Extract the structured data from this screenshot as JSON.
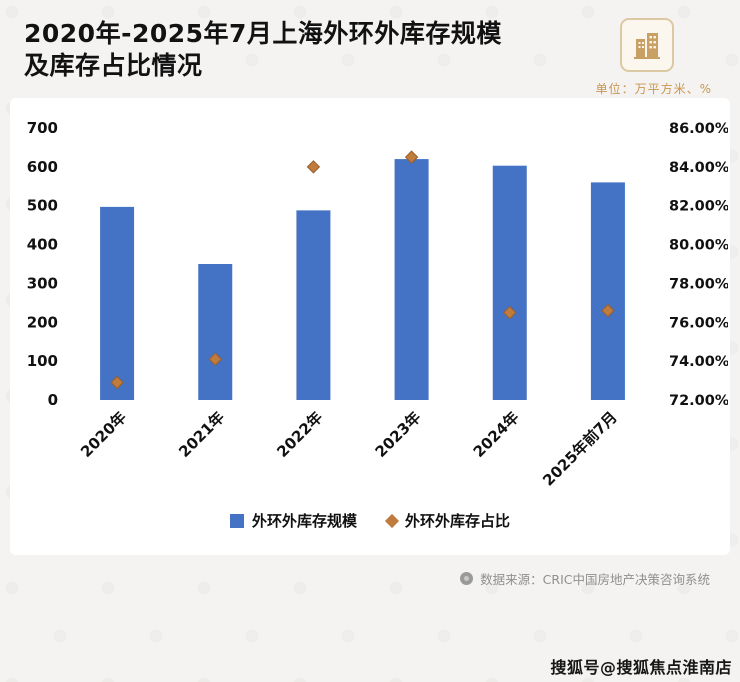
{
  "header": {
    "title_line1": "2020年-2025年7月上海外环外库存规模",
    "title_line2": "及库存占比情况",
    "unit_label": "单位：万平方米、%"
  },
  "legend": {
    "bars_label": "外环外库存规模",
    "markers_label": "外环外库存占比"
  },
  "footer": {
    "source_text": "数据来源：CRIC中国房地产决策咨询系统",
    "watermark": "搜狐号@搜狐焦点淮南店"
  },
  "colors": {
    "bar": "#4472c4",
    "marker": "#c07b3e",
    "marker_stroke": "#9c5f28",
    "accent_text": "#c9954f",
    "axis_text": "#111111",
    "source_text": "#8f8f8f",
    "logo": "#c9a063"
  },
  "chart_data": {
    "type": "bar",
    "categories": [
      "2020年",
      "2021年",
      "2022年",
      "2023年",
      "2024年",
      "2025年前7月"
    ],
    "series": [
      {
        "name": "外环外库存规模",
        "type": "bar",
        "axis": "left",
        "values": [
          497,
          350,
          488,
          620,
          603,
          560
        ]
      },
      {
        "name": "外环外库存占比",
        "type": "scatter",
        "axis": "right",
        "values": [
          72.9,
          74.1,
          84.0,
          84.5,
          76.5,
          76.6
        ]
      }
    ],
    "left_axis": {
      "min": 0,
      "max": 700,
      "step": 100
    },
    "right_axis": {
      "min": 72,
      "max": 86,
      "step": 2,
      "format": "percent2"
    },
    "grid": false,
    "legend_position": "bottom",
    "title": "2020年-2025年7月上海外环外库存规模及库存占比情况",
    "unit": "万平方米、%"
  }
}
